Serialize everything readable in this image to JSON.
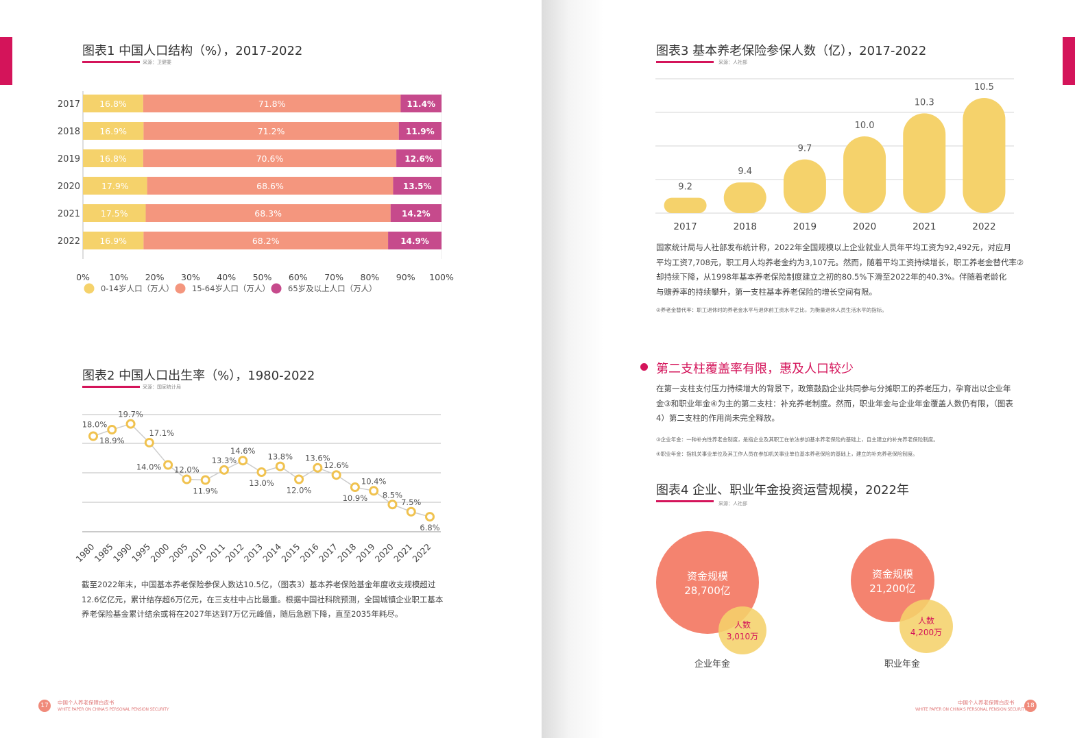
{
  "left": {
    "fig1": {
      "title": "图表1 中国人口结构（%），2017-2022",
      "source": "采源：卫健委",
      "chart_data": {
        "type": "bar",
        "orientation": "horizontal-stacked-100",
        "categories": [
          "2017",
          "2018",
          "2019",
          "2020",
          "2021",
          "2022"
        ],
        "series": [
          {
            "name": "0-14岁人口（万人）",
            "color": "#f5d26b",
            "values": [
              16.8,
              16.9,
              16.8,
              17.9,
              17.5,
              16.9
            ],
            "labels": [
              "16.8%",
              "16.9%",
              "16.8%",
              "17.9%",
              "17.5%",
              "16.9%"
            ]
          },
          {
            "name": "15-64岁人口（万人）",
            "color": "#f4967e",
            "values": [
              71.8,
              71.2,
              70.6,
              68.6,
              68.3,
              68.2
            ],
            "labels": [
              "71.8%",
              "71.2%",
              "70.6%",
              "68.6%",
              "68.3%",
              "68.2%"
            ]
          },
          {
            "name": "65岁及以上人口（万人）",
            "color": "#c64a8c",
            "values": [
              11.4,
              11.9,
              12.6,
              13.5,
              14.2,
              14.9
            ],
            "labels": [
              "11.4%",
              "11.9%",
              "12.6%",
              "13.5%",
              "14.2%",
              "14.9%"
            ]
          }
        ],
        "xticks": [
          "0%",
          "10%",
          "20%",
          "30%",
          "40%",
          "50%",
          "60%",
          "70%",
          "80%",
          "90%",
          "100%"
        ],
        "xlim": [
          0,
          100
        ],
        "legend": "bottom"
      }
    },
    "fig2": {
      "title": "图表2 中国人口出生率（%），1980-2022",
      "source": "采源：国家统计局",
      "chart_data": {
        "type": "line",
        "x": [
          "1980",
          "1985",
          "1990",
          "1995",
          "2000",
          "2005",
          "2010",
          "2011",
          "2012",
          "2013",
          "2014",
          "2015",
          "2016",
          "2017",
          "2018",
          "2019",
          "2020",
          "2021",
          "2022"
        ],
        "values": [
          18.0,
          18.9,
          19.7,
          17.1,
          14.0,
          12.0,
          11.9,
          13.3,
          14.6,
          13.0,
          13.8,
          12.0,
          13.6,
          12.6,
          10.9,
          10.4,
          8.5,
          7.5,
          6.8
        ],
        "labels": [
          "18.0%",
          "18.9%",
          "19.7%",
          "17.1%",
          "14.0%",
          "12.0%",
          "11.9%",
          "13.3%",
          "14.6%",
          "13.0%",
          "13.8%",
          "12.0%",
          "13.6%",
          "12.6%",
          "10.9%",
          "10.4%",
          "8.5%",
          "7.5%",
          "6.8%"
        ],
        "marker_color": "#f0c24f",
        "line_color": "#cccccc",
        "grid": true
      }
    },
    "paragraph": [
      "截至2022年末，中国基本养老保险参保人数达10.5亿，（图表3）基本养老保险基金年度收支规模超过",
      "12.6亿亿元，累计结存超6万亿元，在三支柱中占比最重。根据中国社科院预测，全国城镇企业职工基本",
      "养老保险基金累计结余或将在2027年达到7万亿元峰值，随后急剧下降，直至2035年耗尽。"
    ],
    "footer": {
      "page": "17",
      "cn": "中国个人养老保障白皮书",
      "en": "WHITE PAPER ON CHINA'S PERSONAL PENSION SECURITY"
    }
  },
  "right": {
    "fig3": {
      "title": "图表3 基本养老保险参保人数（亿），2017-2022",
      "source": "采源：人社部",
      "chart_data": {
        "type": "bar",
        "categories": [
          "2017",
          "2018",
          "2019",
          "2020",
          "2021",
          "2022"
        ],
        "values": [
          9.2,
          9.4,
          9.7,
          10.0,
          10.3,
          10.5
        ],
        "labels": [
          "9.2",
          "9.4",
          "9.7",
          "10.0",
          "10.3",
          "10.5"
        ],
        "ylim": [
          9.0,
          10.5
        ],
        "color": "#f5d26b",
        "grid": true
      }
    },
    "paragraph1": [
      "国家统计局与人社部发布统计称，2022年全国规模以上企业就业人员年平均工资为92,492元，对应月",
      "平均工资7,708元，职工月人均养老金约为3,107元。然而，随着平均工资持续增长，职工养老金替代率②",
      "却持续下降，从1998年基本养老保险制度建立之初的80.5%下滑至2022年的40.3%。伴随着老龄化",
      "与赡养率的持续攀升，第一支柱基本养老保险的增长空间有限。"
    ],
    "note1": "②养老金替代率：职工退休时的养老金水平与退休前工资水平之比，为衡量退休人员生活水平的指标。",
    "section_title": "第二支柱覆盖率有限，惠及人口较少",
    "paragraph2": [
      "在第一支柱支付压力持续增大的背景下，政策鼓励企业共同参与分摊职工的养老压力，孕育出以企业年",
      "金③和职业年金④为主的第二支柱：补充养老制度。然而，职业年金与企业年金覆盖人数仍有限，（图表",
      "4）第二支柱的作用尚未完全释放。"
    ],
    "note2": "③企业年金：一种补充性养老金制度，是指企业及其职工在依法参加基本养老保险的基础上，自主建立的补充养老保险制度。",
    "note3": "④职业年金：指机关事业单位及其工作人员在参加机关事业单位基本养老保险的基础上，建立的补充养老保险制度。",
    "fig4": {
      "title": "图表4 企业、职业年金投资运营规模，2022年",
      "source": "采源：人社部",
      "chart_data": {
        "type": "bubble",
        "groups": [
          {
            "name": "企业年金",
            "scale_label": "资金规模",
            "scale_value": "28,700亿",
            "scale": 28700,
            "people_label": "人数",
            "people_value": "3,010万",
            "people": 3010
          },
          {
            "name": "职业年金",
            "scale_label": "资金规模",
            "scale_value": "21,200亿",
            "scale": 21200,
            "people_label": "人数",
            "people_value": "4,200万",
            "people": 4200
          }
        ],
        "colors": {
          "scale": "#f4836f",
          "people": "#f5d26b"
        }
      }
    },
    "footer": {
      "page": "18",
      "cn": "中国个人养老保障白皮书",
      "en": "WHITE PAPER ON CHINA'S PERSONAL PENSION SECURITY"
    }
  }
}
